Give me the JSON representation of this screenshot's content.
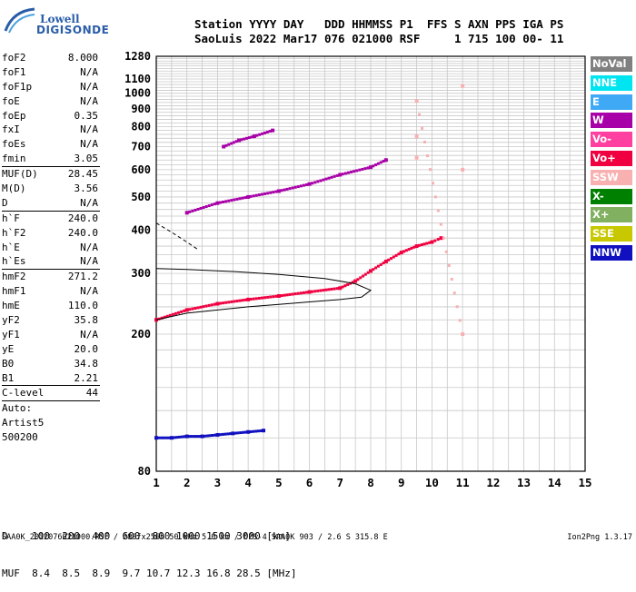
{
  "logo": {
    "line1": "Lowell",
    "line2": "DIGISONDE"
  },
  "header": {
    "row1": "Station YYYY DAY   DDD HHMMSS P1  FFS S AXN PPS IGA PS",
    "row2": "SaoLuis 2022 Mar17 076 021000 RSF     1 715 100 00- 11"
  },
  "params": {
    "group1": [
      {
        "k": "foF2",
        "v": "8.000"
      },
      {
        "k": "foF1",
        "v": "N/A"
      },
      {
        "k": "foF1p",
        "v": "N/A"
      },
      {
        "k": "foE",
        "v": "N/A"
      },
      {
        "k": "foEp",
        "v": "0.35"
      },
      {
        "k": "fxI",
        "v": "N/A"
      },
      {
        "k": "foEs",
        "v": "N/A"
      },
      {
        "k": "fmin",
        "v": "3.05"
      }
    ],
    "group2": [
      {
        "k": "MUF(D)",
        "v": "28.45"
      },
      {
        "k": "M(D)",
        "v": "3.56"
      },
      {
        "k": "D",
        "v": "N/A"
      }
    ],
    "group3": [
      {
        "k": "h`F",
        "v": "240.0"
      },
      {
        "k": "h`F2",
        "v": "240.0"
      },
      {
        "k": "h`E",
        "v": "N/A"
      },
      {
        "k": "h`Es",
        "v": "N/A"
      }
    ],
    "group4": [
      {
        "k": "hmF2",
        "v": "271.2"
      },
      {
        "k": "hmF1",
        "v": "N/A"
      },
      {
        "k": "hmE",
        "v": "110.0"
      },
      {
        "k": "yF2",
        "v": "35.8"
      },
      {
        "k": "yF1",
        "v": "N/A"
      },
      {
        "k": "yE",
        "v": "20.0"
      },
      {
        "k": "B0",
        "v": "34.8"
      },
      {
        "k": "B1",
        "v": "2.21"
      }
    ],
    "clevel": {
      "k": "C-level",
      "v": "44"
    },
    "extra": [
      "Auto:",
      "Artist5",
      "500200"
    ]
  },
  "legend": [
    {
      "label": "NoVal",
      "color": "#808080"
    },
    {
      "label": "NNE",
      "color": "#00e5f0"
    },
    {
      "label": "E",
      "color": "#3fa9f5"
    },
    {
      "label": "W",
      "color": "#a800a8"
    },
    {
      "label": "Vo-",
      "color": "#ff40a0"
    },
    {
      "label": "Vo+",
      "color": "#f00040"
    },
    {
      "label": "SSW",
      "color": "#f8b0b0"
    },
    {
      "label": "X-",
      "color": "#008000"
    },
    {
      "label": "X+",
      "color": "#80b060"
    },
    {
      "label": "SSE",
      "color": "#c8c800"
    },
    {
      "label": "NNW",
      "color": "#1010c0"
    }
  ],
  "bottom": {
    "row1": "D    100  200  400  600  800 1000 1500 3000 [km]",
    "row2": "MUF  8.4  8.5  8.9  9.7 10.7 12.3 16.8 28.5 [MHz]"
  },
  "footer": {
    "left": "SAA0K_2022076021000.RSF / 280fx256h 50 kHz 5.0 km / DPS-4 SAA0K 903 / 2.6 S 315.8 E",
    "right": "Ion2Png 1.3.17"
  },
  "chart_data": {
    "type": "scatter",
    "title": "",
    "xlabel": "",
    "ylabel": "",
    "xlim": [
      1,
      15
    ],
    "ylim": [
      80,
      1280
    ],
    "y_scale": "log",
    "x_ticks": [
      1,
      2,
      3,
      4,
      5,
      6,
      7,
      8,
      9,
      10,
      11,
      12,
      13,
      14,
      15
    ],
    "y_ticks": [
      80,
      200,
      300,
      400,
      500,
      600,
      700,
      800,
      900,
      1000,
      1100,
      1280
    ],
    "grid": true,
    "traces": [
      {
        "name": "F2 trace",
        "color": "#f00040",
        "x": [
          1.0,
          2.0,
          3.0,
          4.0,
          5.0,
          6.0,
          7.0,
          7.5,
          8.0,
          8.5,
          9.0,
          9.5,
          10.0,
          10.3
        ],
        "y": [
          220,
          235,
          245,
          252,
          258,
          265,
          272,
          285,
          305,
          325,
          345,
          360,
          370,
          380
        ]
      },
      {
        "name": "2nd hop",
        "color": "#a800a8",
        "x": [
          2.0,
          3.0,
          4.0,
          5.0,
          6.0,
          7.0,
          8.0,
          8.5
        ],
        "y": [
          450,
          480,
          500,
          520,
          545,
          580,
          610,
          640
        ]
      },
      {
        "name": "3rd hop",
        "color": "#a800a8",
        "x": [
          3.2,
          3.7,
          4.2,
          4.8
        ],
        "y": [
          700,
          730,
          750,
          780
        ]
      },
      {
        "name": "E region",
        "color": "#1010c0",
        "x": [
          1.0,
          1.5,
          2.0,
          2.5,
          3.0,
          3.5,
          4.0,
          4.5
        ],
        "y": [
          100,
          100,
          101,
          101,
          102,
          103,
          104,
          105
        ]
      },
      {
        "name": "Fx vertical",
        "color": "#f8b0b0",
        "x": [
          9.5,
          9.5,
          9.5,
          11.0,
          11.0,
          11.0
        ],
        "y": [
          650,
          750,
          950,
          200,
          600,
          1050
        ]
      }
    ],
    "profile_curve": {
      "x": [
        1.0,
        2.0,
        3.0,
        4.0,
        5.0,
        6.0,
        7.0,
        7.7,
        8.0,
        7.5,
        6.5,
        5.0,
        3.5,
        2.0,
        1.0
      ],
      "y": [
        220,
        230,
        235,
        240,
        244,
        248,
        252,
        256,
        268,
        280,
        290,
        298,
        304,
        308,
        310
      ]
    },
    "dashed_curve": {
      "x": [
        1.0,
        1.5,
        2.0,
        2.4
      ],
      "y": [
        420,
        395,
        370,
        350
      ]
    }
  }
}
